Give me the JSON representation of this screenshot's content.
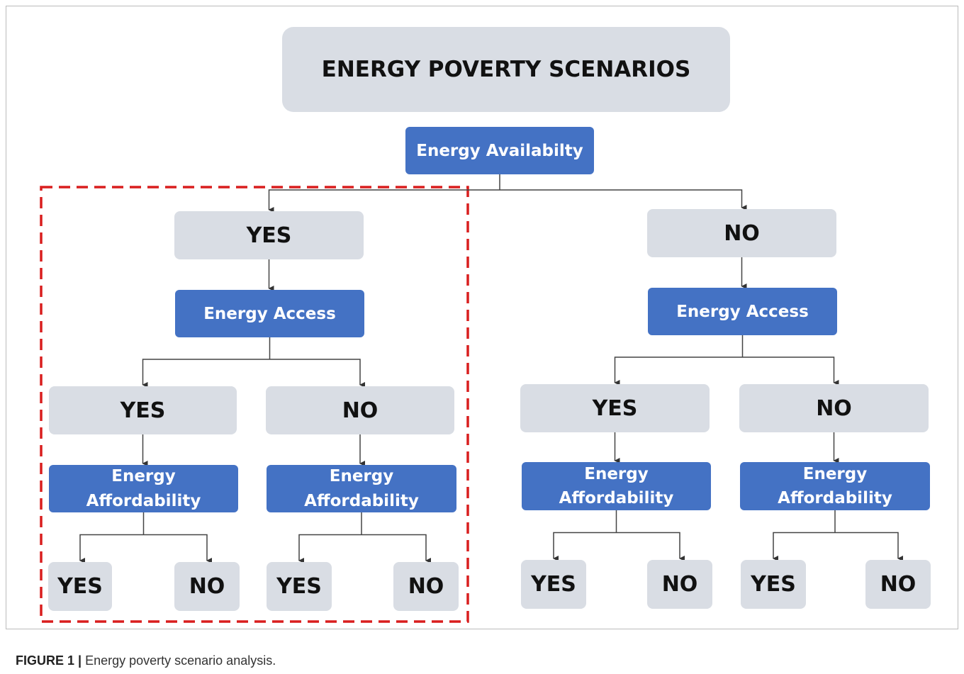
{
  "title": "ENERGY POVERTY SCENARIOS",
  "nodes": [
    {
      "label": "Energy Availabilty"
    },
    {
      "label": "YES"
    },
    {
      "label": "NO"
    },
    {
      "label": "Energy Access"
    },
    {
      "label": "Energy Access"
    },
    {
      "label": "YES"
    },
    {
      "label": "NO"
    },
    {
      "label": "YES"
    },
    {
      "label": "NO"
    },
    {
      "label": "Energy Affordability"
    },
    {
      "label": "Energy Affordability"
    },
    {
      "label": "Energy Affordability"
    },
    {
      "label": "Energy Affordability"
    },
    {
      "label": "YES"
    },
    {
      "label": "NO"
    },
    {
      "label": "YES"
    },
    {
      "label": "NO"
    },
    {
      "label": "YES"
    },
    {
      "label": "NO"
    },
    {
      "label": "YES"
    },
    {
      "label": "NO"
    }
  ],
  "caption": {
    "label": "FIGURE 1 |",
    "text": "Energy poverty scenario analysis."
  }
}
